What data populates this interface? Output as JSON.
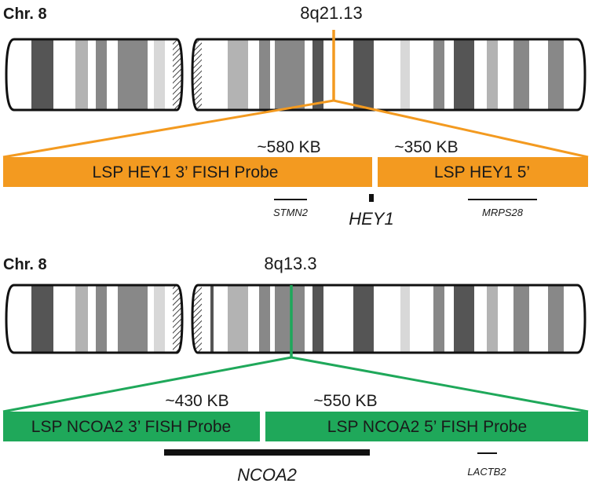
{
  "colors": {
    "hey1_probe": "#f39a20",
    "ncoa2_probe": "#1fa85a",
    "outline": "#111111",
    "band_dark": "#555555",
    "band_mid": "#888888",
    "band_light": "#b3b3b3",
    "band_pale": "#d8d8d8"
  },
  "panels": [
    {
      "chromosome_label": "Chr. 8",
      "band": "8q21.13",
      "size_left": "~580 KB",
      "size_right": "~350 KB",
      "probe_left": "LSP HEY1 3’ FISH Probe",
      "probe_right": "LSP HEY1 5’",
      "genes": [
        "STMN2",
        "HEY1",
        "MRPS28"
      ]
    },
    {
      "chromosome_label": "Chr. 8",
      "band": "8q13.3",
      "size_left": "~430 KB",
      "size_right": "~550 KB",
      "probe_left": "LSP NCOA2 3’ FISH Probe",
      "probe_right": "LSP NCOA2 5’ FISH Probe",
      "genes": [
        "NCOA2",
        "LACTB2"
      ]
    }
  ]
}
